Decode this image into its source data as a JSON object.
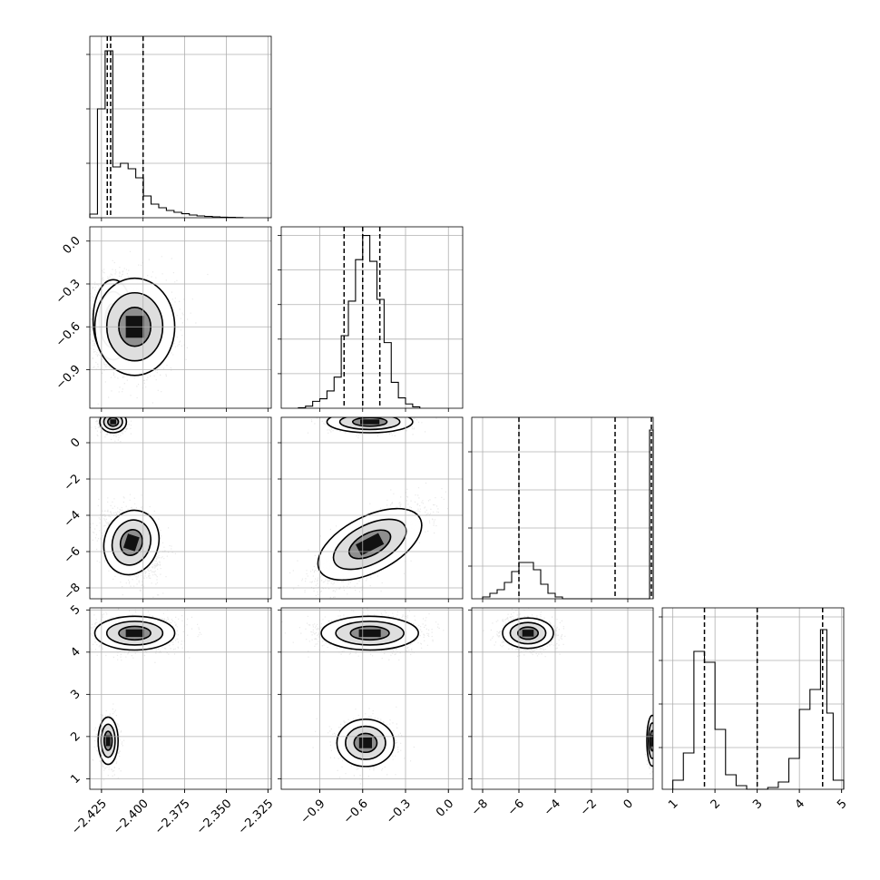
{
  "chart_data": {
    "type": "corner",
    "parameters": [
      {
        "id": "p1",
        "range": [
          -2.432,
          -2.323
        ],
        "ticks": [
          -2.425,
          -2.4,
          -2.375,
          -2.35,
          -2.325
        ],
        "tick_labels": [
          "−2.425",
          "−2.400",
          "−2.375",
          "−2.350",
          "−2.325"
        ],
        "quantiles": [
          -2.4215,
          -2.4195,
          -2.4
        ],
        "histogram": {
          "edges": [
            -2.432,
            -2.4274,
            -2.4228,
            -2.4182,
            -2.4136,
            -2.409,
            -2.4044,
            -2.3998,
            -2.3952,
            -2.3906,
            -2.386,
            -2.3814,
            -2.3768,
            -2.3722,
            -2.3676,
            -2.363,
            -2.3584,
            -2.3538,
            -2.3492,
            -2.3446,
            -2.34
          ],
          "counts": [
            0.02,
            0.6,
            0.92,
            0.28,
            0.3,
            0.27,
            0.22,
            0.12,
            0.075,
            0.055,
            0.04,
            0.03,
            0.022,
            0.015,
            0.01,
            0.007,
            0.005,
            0.003,
            0.002,
            0.001
          ],
          "ylim": [
            0,
            1.0
          ],
          "yticks": [
            0.3,
            0.6,
            0.9
          ]
        }
      },
      {
        "id": "p2",
        "range": [
          -1.17,
          0.1
        ],
        "ticks": [
          -0.9,
          -0.6,
          -0.3,
          0.0
        ],
        "tick_labels": [
          "−0.9",
          "−0.6",
          "−0.3",
          "0.0"
        ],
        "quantiles": [
          -0.73,
          -0.6,
          -0.48
        ],
        "histogram": {
          "edges": [
            -1.05,
            -1.0,
            -0.95,
            -0.9,
            -0.85,
            -0.8,
            -0.75,
            -0.7,
            -0.65,
            -0.6,
            -0.55,
            -0.5,
            -0.45,
            -0.4,
            -0.35,
            -0.3,
            -0.25,
            -0.2
          ],
          "counts": [
            0.003,
            0.012,
            0.04,
            0.055,
            0.1,
            0.18,
            0.42,
            0.62,
            0.86,
            1.0,
            0.85,
            0.63,
            0.38,
            0.15,
            0.06,
            0.025,
            0.008
          ],
          "ylim": [
            0,
            1.05
          ],
          "yticks": [
            0.2,
            0.4,
            0.6,
            0.8,
            1.0
          ]
        }
      },
      {
        "id": "p3",
        "range": [
          -8.6,
          1.4
        ],
        "ticks": [
          -8,
          -6,
          -4,
          -2,
          0
        ],
        "tick_labels": [
          "−8",
          "−6",
          "−4",
          "−2",
          "0"
        ],
        "quantiles": [
          -6.0,
          -0.7,
          1.3
        ],
        "histogram": {
          "edges": [
            -8.0,
            -7.6,
            -7.2,
            -6.8,
            -6.4,
            -6.0,
            -5.6,
            -5.2,
            -4.8,
            -4.4,
            -4.0,
            -3.6,
            0.8,
            1.2,
            1.4
          ],
          "counts": [
            0.01,
            0.03,
            0.05,
            0.09,
            0.15,
            0.2,
            0.2,
            0.16,
            0.08,
            0.03,
            0.01,
            0.0,
            0.0,
            0.93
          ],
          "ylim": [
            0,
            1.0
          ],
          "yticks": [
            0.18,
            0.39,
            0.6,
            0.81
          ]
        }
      },
      {
        "id": "p4",
        "range": [
          0.75,
          5.05
        ],
        "ticks": [
          1,
          2,
          3,
          4,
          5
        ],
        "tick_labels": [
          "1",
          "2",
          "3",
          "4",
          "5"
        ],
        "quantiles": [
          1.75,
          3.0,
          4.55
        ],
        "histogram": {
          "edges": [
            1.0,
            1.25,
            1.5,
            1.75,
            2.0,
            2.25,
            2.5,
            2.75,
            3.0,
            3.25,
            3.5,
            3.75,
            4.0,
            4.25,
            4.5,
            4.65,
            4.8,
            5.05
          ],
          "counts": [
            0.05,
            0.2,
            0.76,
            0.7,
            0.33,
            0.08,
            0.02,
            0.0,
            0.0,
            0.01,
            0.04,
            0.17,
            0.44,
            0.55,
            0.88,
            0.42,
            0.05
          ],
          "ylim": [
            0,
            1.0
          ],
          "yticks": [
            0.23,
            0.47,
            0.71,
            0.95
          ]
        }
      }
    ],
    "scatter_panels": [
      {
        "x": "p1",
        "y": "p2",
        "modes": [
          {
            "x": -2.418,
            "y": -0.55,
            "sx": 0.006,
            "sy": 0.14,
            "n": 1800,
            "rho": 0
          },
          {
            "x": -2.405,
            "y": -0.6,
            "sx": 0.012,
            "sy": 0.17,
            "n": 1100,
            "rho": 0
          }
        ]
      },
      {
        "x": "p1",
        "y": "p3",
        "modes": [
          {
            "x": -2.418,
            "y": 1.15,
            "sx": 0.004,
            "sy": 0.3,
            "n": 700,
            "rho": 0
          },
          {
            "x": -2.407,
            "y": -5.5,
            "sx": 0.008,
            "sy": 0.9,
            "n": 1800,
            "rho": -0.3
          }
        ]
      },
      {
        "x": "p1",
        "y": "p4",
        "modes": [
          {
            "x": -2.405,
            "y": 4.45,
            "sx": 0.012,
            "sy": 0.2,
            "n": 1600,
            "rho": 0
          },
          {
            "x": -2.421,
            "y": 1.9,
            "sx": 0.003,
            "sy": 0.28,
            "n": 900,
            "rho": 0
          }
        ]
      },
      {
        "x": "p2",
        "y": "p3",
        "modes": [
          {
            "x": -0.55,
            "y": 1.15,
            "sx": 0.15,
            "sy": 0.3,
            "n": 700,
            "rho": 0
          },
          {
            "x": -0.55,
            "y": -5.6,
            "sx": 0.18,
            "sy": 1.1,
            "n": 1800,
            "rho": 0.75
          }
        ]
      },
      {
        "x": "p2",
        "y": "p4",
        "modes": [
          {
            "x": -0.55,
            "y": 4.45,
            "sx": 0.17,
            "sy": 0.2,
            "n": 1600,
            "rho": 0
          },
          {
            "x": -0.58,
            "y": 1.85,
            "sx": 0.1,
            "sy": 0.28,
            "n": 900,
            "rho": 0
          }
        ]
      },
      {
        "x": "p3",
        "y": "p4",
        "modes": [
          {
            "x": -5.5,
            "y": 4.45,
            "sx": 0.7,
            "sy": 0.18,
            "n": 1600,
            "rho": 0
          },
          {
            "x": 1.35,
            "y": 1.9,
            "sx": 0.15,
            "sy": 0.3,
            "n": 500,
            "rho": 0
          }
        ]
      }
    ]
  }
}
